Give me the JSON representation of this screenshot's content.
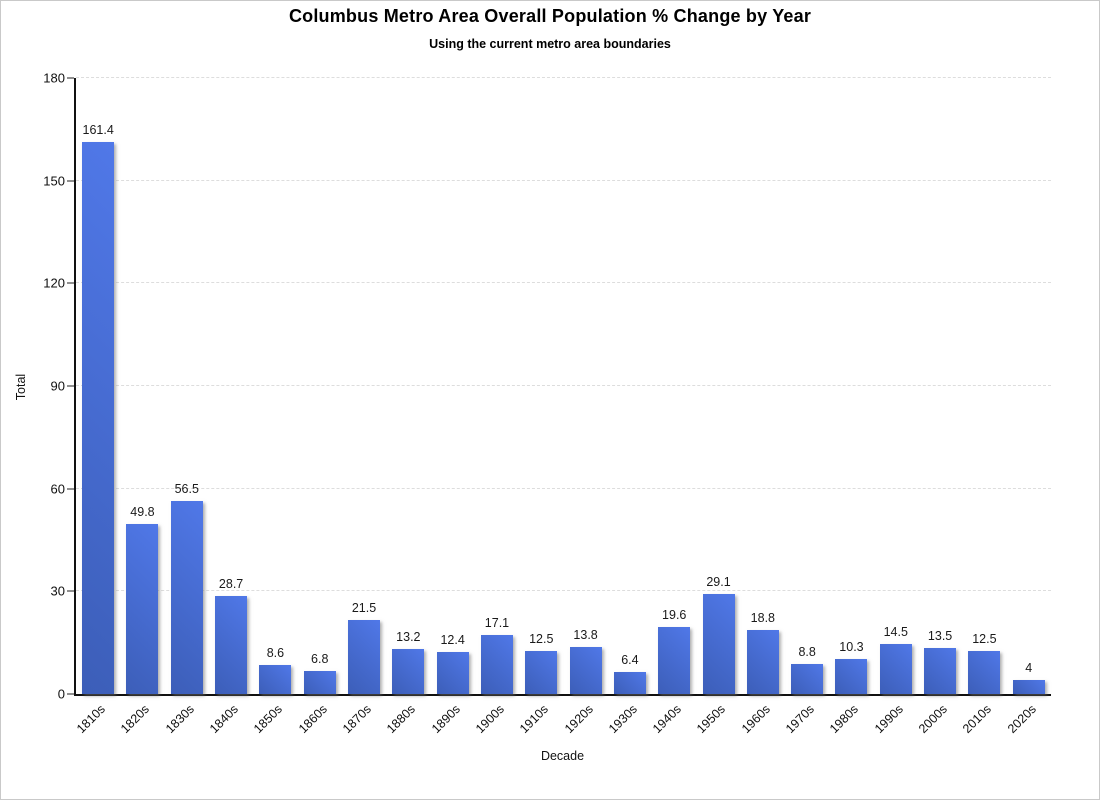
{
  "figure": {
    "background": "#ffffff",
    "border_color": "#c9c9c9"
  },
  "chart_data": {
    "type": "bar",
    "title": "Columbus Metro Area Overall Population % Change by Year",
    "subtitle": "Using the current metro area boundaries",
    "xlabel": "Decade",
    "ylabel": "Total",
    "categories": [
      "1810s",
      "1820s",
      "1830s",
      "1840s",
      "1850s",
      "1860s",
      "1870s",
      "1880s",
      "1890s",
      "1900s",
      "1910s",
      "1920s",
      "1930s",
      "1940s",
      "1950s",
      "1960s",
      "1970s",
      "1980s",
      "1990s",
      "2000s",
      "2010s",
      "2020s"
    ],
    "values": [
      161.4,
      49.8,
      56.5,
      28.7,
      8.6,
      6.8,
      21.5,
      13.2,
      12.4,
      17.1,
      12.5,
      13.8,
      6.4,
      19.6,
      29.1,
      18.8,
      8.8,
      10.3,
      14.5,
      13.5,
      12.5,
      4
    ],
    "value_labels": [
      "161.4",
      "49.8",
      "56.5",
      "28.7",
      "8.6",
      "6.8",
      "21.5",
      "13.2",
      "12.4",
      "17.1",
      "12.5",
      "13.8",
      "6.4",
      "19.6",
      "29.1",
      "18.8",
      "8.8",
      "10.3",
      "14.5",
      "13.5",
      "12.5",
      "4"
    ],
    "ylim": [
      0,
      180
    ],
    "yticks": [
      0,
      30,
      60,
      90,
      120,
      150,
      180
    ],
    "grid": "horizontal-dashed",
    "legend": "none",
    "bar_color": "#4a72dd",
    "bar_gradient": [
      "#3c5eb8",
      "#5078e8"
    ],
    "axis_color": "#111111",
    "gridline_color": "#dddddd",
    "label_color": "#1a1a1a"
  }
}
